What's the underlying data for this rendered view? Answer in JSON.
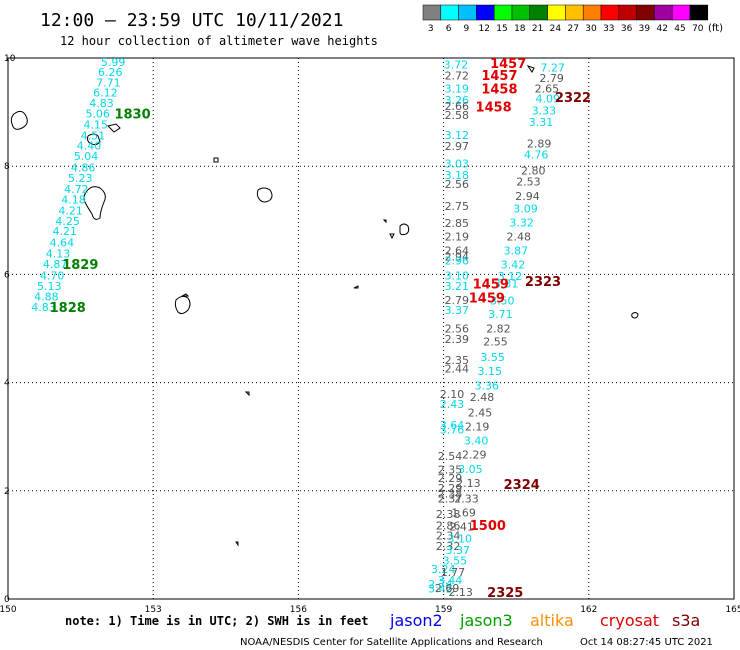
{
  "header": {
    "title": "12:00 – 23:59 UTC 10/11/2021",
    "subtitle": "12 hour collection of altimeter wave heights"
  },
  "colorbar": {
    "ticks": [
      "3",
      "6",
      "9",
      "12",
      "15",
      "18",
      "21",
      "24",
      "27",
      "30",
      "33",
      "36",
      "39",
      "42",
      "45",
      "70"
    ],
    "unit": "(ft)",
    "colors": [
      "#808080",
      "#00ffff",
      "#00c0ff",
      "#0000ff",
      "#00ff00",
      "#00c000",
      "#008000",
      "#ffff00",
      "#ffc000",
      "#ff8000",
      "#ff0000",
      "#c00000",
      "#800000",
      "#a000a0",
      "#ff00ff",
      "#000000"
    ]
  },
  "footer": {
    "note": "note:  1) Time is in UTC;  2) SWH is in feet",
    "credit": "NOAA/NESDIS Center for Satellite Applications and Research",
    "timestamp": "Oct 14 08:27:45 UTC 2021",
    "missions": [
      {
        "label": "jason2",
        "color": "#0000ff"
      },
      {
        "label": "jason3",
        "color": "#00a000"
      },
      {
        "label": "altika",
        "color": "#ff9000"
      },
      {
        "label": "cryosat",
        "color": "#e00000"
      },
      {
        "label": "s3a",
        "color": "#800000"
      }
    ]
  },
  "chart_data": {
    "type": "scatter",
    "xlim": [
      150,
      165
    ],
    "ylim": [
      0,
      10
    ],
    "x_ticks": [
      "150",
      "153",
      "156",
      "159",
      "162",
      "165"
    ],
    "y_ticks": [
      "0",
      "2",
      "4",
      "6",
      "8",
      "10"
    ],
    "x_tick_values": [
      150,
      153,
      156,
      159,
      162,
      165
    ],
    "y_tick_values": [
      0,
      2,
      4,
      6,
      8,
      10
    ],
    "grid": true,
    "colors": {
      "gray": "#555555",
      "cyan": "#00d8e8",
      "green": "#008000",
      "red": "#e00000",
      "maroon": "#800000"
    },
    "series": [
      {
        "name": "jason3",
        "points": [
          {
            "lon": 151.92,
            "lat": 9.93,
            "label": "5.99",
            "c": "cyan"
          },
          {
            "lon": 151.86,
            "lat": 9.74,
            "label": "6.26",
            "c": "cyan"
          },
          {
            "lon": 151.82,
            "lat": 9.55,
            "label": "7.71",
            "c": "cyan"
          },
          {
            "lon": 151.76,
            "lat": 9.36,
            "label": "6.12",
            "c": "cyan"
          },
          {
            "lon": 151.68,
            "lat": 9.17,
            "label": "4.83",
            "c": "cyan"
          },
          {
            "lon": 151.6,
            "lat": 8.97,
            "label": "5.06",
            "c": "cyan"
          },
          {
            "lon": 151.56,
            "lat": 8.77,
            "label": "4.15",
            "c": "cyan"
          },
          {
            "lon": 151.5,
            "lat": 8.57,
            "label": "4.51",
            "c": "cyan"
          },
          {
            "lon": 151.42,
            "lat": 8.38,
            "label": "4.40",
            "c": "cyan"
          },
          {
            "lon": 151.36,
            "lat": 8.19,
            "label": "5.04",
            "c": "cyan"
          },
          {
            "lon": 151.3,
            "lat": 7.98,
            "label": "4.86",
            "c": "cyan"
          },
          {
            "lon": 151.24,
            "lat": 7.78,
            "label": "5.23",
            "c": "cyan"
          },
          {
            "lon": 151.16,
            "lat": 7.58,
            "label": "4.72",
            "c": "cyan"
          },
          {
            "lon": 151.1,
            "lat": 7.38,
            "label": "4.18",
            "c": "cyan"
          },
          {
            "lon": 151.04,
            "lat": 7.18,
            "label": "4.21",
            "c": "cyan"
          },
          {
            "lon": 150.98,
            "lat": 6.99,
            "label": "4.25",
            "c": "cyan"
          },
          {
            "lon": 150.92,
            "lat": 6.8,
            "label": "4.21",
            "c": "cyan"
          },
          {
            "lon": 150.86,
            "lat": 6.59,
            "label": "4.64",
            "c": "cyan"
          },
          {
            "lon": 150.78,
            "lat": 6.39,
            "label": "4.13",
            "c": "cyan"
          },
          {
            "lon": 150.72,
            "lat": 6.19,
            "label": "4.87",
            "c": "cyan"
          },
          {
            "lon": 150.66,
            "lat": 5.98,
            "label": "4.70",
            "c": "cyan"
          },
          {
            "lon": 150.6,
            "lat": 5.79,
            "label": "5.13",
            "c": "cyan"
          },
          {
            "lon": 150.54,
            "lat": 5.59,
            "label": "4.88",
            "c": "cyan"
          },
          {
            "lon": 150.48,
            "lat": 5.4,
            "label": "4.83",
            "c": "cyan"
          }
        ],
        "times": [
          {
            "lon": 152.2,
            "lat": 8.97,
            "label": "1830",
            "c": "green"
          },
          {
            "lon": 151.12,
            "lat": 6.19,
            "label": "1829",
            "c": "green"
          },
          {
            "lon": 150.86,
            "lat": 5.4,
            "label": "1828",
            "c": "green"
          }
        ]
      },
      {
        "name": "s3a",
        "points": [
          {
            "lon": 159.0,
            "lat": 9.88,
            "label": "3.72",
            "c": "cyan"
          },
          {
            "lon": 159.02,
            "lat": 9.68,
            "label": "2.72",
            "c": "gray"
          },
          {
            "lon": 159.02,
            "lat": 9.44,
            "label": "3.19",
            "c": "cyan"
          },
          {
            "lon": 159.02,
            "lat": 9.22,
            "label": "3.26",
            "c": "cyan"
          },
          {
            "lon": 159.02,
            "lat": 9.11,
            "label": "2.66",
            "c": "gray"
          },
          {
            "lon": 159.02,
            "lat": 8.95,
            "label": "2.58",
            "c": "gray"
          },
          {
            "lon": 159.02,
            "lat": 8.58,
            "label": "3.12",
            "c": "cyan"
          },
          {
            "lon": 159.02,
            "lat": 8.37,
            "label": "2.97",
            "c": "gray"
          },
          {
            "lon": 159.02,
            "lat": 8.05,
            "label": "3.03",
            "c": "cyan"
          },
          {
            "lon": 159.02,
            "lat": 7.84,
            "label": "3.18",
            "c": "cyan"
          },
          {
            "lon": 159.02,
            "lat": 7.67,
            "label": "2.56",
            "c": "gray"
          },
          {
            "lon": 159.02,
            "lat": 7.26,
            "label": "2.75",
            "c": "gray"
          },
          {
            "lon": 159.02,
            "lat": 6.95,
            "label": "2.85",
            "c": "gray"
          },
          {
            "lon": 159.02,
            "lat": 6.7,
            "label": "2.19",
            "c": "gray"
          },
          {
            "lon": 159.02,
            "lat": 6.44,
            "label": "2.64",
            "c": "gray"
          },
          {
            "lon": 159.02,
            "lat": 6.33,
            "label": "2.94",
            "c": "gray"
          },
          {
            "lon": 159.02,
            "lat": 6.26,
            "label": "2.96",
            "c": "cyan"
          },
          {
            "lon": 159.02,
            "lat": 5.98,
            "label": "3.10",
            "c": "cyan"
          },
          {
            "lon": 159.02,
            "lat": 5.79,
            "label": "3.21",
            "c": "cyan"
          },
          {
            "lon": 159.02,
            "lat": 5.53,
            "label": "2.79",
            "c": "gray"
          },
          {
            "lon": 159.02,
            "lat": 5.34,
            "label": "3.37",
            "c": "cyan"
          },
          {
            "lon": 159.02,
            "lat": 5.0,
            "label": "2.56",
            "c": "gray"
          },
          {
            "lon": 159.02,
            "lat": 4.81,
            "label": "2.39",
            "c": "gray"
          },
          {
            "lon": 159.02,
            "lat": 4.42,
            "label": "2.35",
            "c": "gray"
          },
          {
            "lon": 159.02,
            "lat": 4.26,
            "label": "2.44",
            "c": "gray"
          },
          {
            "lon": 158.92,
            "lat": 3.79,
            "label": "2.10",
            "c": "gray"
          },
          {
            "lon": 158.92,
            "lat": 3.6,
            "label": "2.43",
            "c": "cyan"
          },
          {
            "lon": 158.92,
            "lat": 3.22,
            "label": "3.64",
            "c": "cyan"
          },
          {
            "lon": 158.92,
            "lat": 3.13,
            "label": "3.76",
            "c": "cyan"
          },
          {
            "lon": 158.88,
            "lat": 2.64,
            "label": "2.54",
            "c": "gray"
          },
          {
            "lon": 158.88,
            "lat": 2.39,
            "label": "2.35",
            "c": "gray"
          },
          {
            "lon": 158.88,
            "lat": 2.24,
            "label": "2.29",
            "c": "gray"
          },
          {
            "lon": 158.88,
            "lat": 2.05,
            "label": "2.29",
            "c": "gray"
          },
          {
            "lon": 158.88,
            "lat": 1.95,
            "label": "2.38",
            "c": "gray"
          },
          {
            "lon": 158.88,
            "lat": 1.86,
            "label": "2.37",
            "c": "gray"
          },
          {
            "lon": 158.84,
            "lat": 1.57,
            "label": "2.38",
            "c": "gray"
          },
          {
            "lon": 158.84,
            "lat": 1.36,
            "label": "2.86",
            "c": "gray"
          },
          {
            "lon": 158.84,
            "lat": 1.17,
            "label": "2.34",
            "c": "gray"
          },
          {
            "lon": 158.84,
            "lat": 0.98,
            "label": "2.32",
            "c": "gray"
          },
          {
            "lon": 158.74,
            "lat": 0.55,
            "label": "3.24",
            "c": "cyan"
          },
          {
            "lon": 158.68,
            "lat": 0.28,
            "label": "2.74",
            "c": "cyan"
          },
          {
            "lon": 158.68,
            "lat": 0.19,
            "label": "3.42",
            "c": "cyan"
          },
          {
            "lon": 159.1,
            "lat": 0.13,
            "label": "2.13",
            "c": "gray"
          }
        ],
        "times": [
          {
            "lon": 161.3,
            "lat": 9.28,
            "label": "2322",
            "c": "maroon"
          },
          {
            "lon": 160.68,
            "lat": 5.88,
            "label": "2323",
            "c": "maroon"
          },
          {
            "lon": 160.24,
            "lat": 2.13,
            "label": "2324",
            "c": "maroon"
          },
          {
            "lon": 159.9,
            "lat": 0.13,
            "label": "2325",
            "c": "maroon"
          }
        ]
      },
      {
        "name": "cryosat",
        "points": [
          {
            "lon": 161.0,
            "lat": 9.82,
            "label": "7.27",
            "c": "cyan"
          },
          {
            "lon": 160.98,
            "lat": 9.63,
            "label": "2.79",
            "c": "gray"
          },
          {
            "lon": 160.88,
            "lat": 9.44,
            "label": "2.65",
            "c": "gray"
          },
          {
            "lon": 160.9,
            "lat": 9.25,
            "label": "4.09",
            "c": "cyan"
          },
          {
            "lon": 160.82,
            "lat": 9.03,
            "label": "3.33",
            "c": "cyan"
          },
          {
            "lon": 160.76,
            "lat": 8.82,
            "label": "3.31",
            "c": "cyan"
          },
          {
            "lon": 160.72,
            "lat": 8.42,
            "label": "2.89",
            "c": "gray"
          },
          {
            "lon": 160.66,
            "lat": 8.22,
            "label": "4.76",
            "c": "cyan"
          },
          {
            "lon": 160.6,
            "lat": 7.92,
            "label": "2.80",
            "c": "gray"
          },
          {
            "lon": 160.5,
            "lat": 7.72,
            "label": "2.53",
            "c": "gray"
          },
          {
            "lon": 160.48,
            "lat": 7.45,
            "label": "2.94",
            "c": "gray"
          },
          {
            "lon": 160.44,
            "lat": 7.22,
            "label": "3.09",
            "c": "cyan"
          },
          {
            "lon": 160.36,
            "lat": 6.96,
            "label": "3.32",
            "c": "cyan"
          },
          {
            "lon": 160.3,
            "lat": 6.7,
            "label": "2.48",
            "c": "gray"
          },
          {
            "lon": 160.24,
            "lat": 6.44,
            "label": "3.87",
            "c": "cyan"
          },
          {
            "lon": 160.18,
            "lat": 6.18,
            "label": "3.42",
            "c": "cyan"
          },
          {
            "lon": 160.12,
            "lat": 5.97,
            "label": "3.12",
            "c": "cyan"
          },
          {
            "lon": 160.04,
            "lat": 5.83,
            "label": "3.31",
            "c": "cyan"
          },
          {
            "lon": 159.96,
            "lat": 5.52,
            "label": "3.50",
            "c": "cyan"
          },
          {
            "lon": 159.92,
            "lat": 5.27,
            "label": "3.71",
            "c": "cyan"
          },
          {
            "lon": 159.88,
            "lat": 5.0,
            "label": "2.82",
            "c": "gray"
          },
          {
            "lon": 159.82,
            "lat": 4.76,
            "label": "2.55",
            "c": "gray"
          },
          {
            "lon": 159.76,
            "lat": 4.47,
            "label": "3.55",
            "c": "cyan"
          },
          {
            "lon": 159.7,
            "lat": 4.21,
            "label": "3.15",
            "c": "cyan"
          },
          {
            "lon": 159.64,
            "lat": 3.95,
            "label": "3.36",
            "c": "cyan"
          },
          {
            "lon": 159.54,
            "lat": 3.73,
            "label": "2.48",
            "c": "gray"
          },
          {
            "lon": 159.5,
            "lat": 3.45,
            "label": "2.45",
            "c": "gray"
          },
          {
            "lon": 159.44,
            "lat": 3.19,
            "label": "2.19",
            "c": "gray"
          },
          {
            "lon": 159.42,
            "lat": 2.93,
            "label": "3.40",
            "c": "cyan"
          },
          {
            "lon": 159.38,
            "lat": 2.67,
            "label": "2.29",
            "c": "gray"
          },
          {
            "lon": 159.3,
            "lat": 2.4,
            "label": "3.05",
            "c": "cyan"
          },
          {
            "lon": 159.26,
            "lat": 2.14,
            "label": "2.13",
            "c": "gray"
          },
          {
            "lon": 159.22,
            "lat": 1.86,
            "label": "2.33",
            "c": "gray"
          },
          {
            "lon": 159.16,
            "lat": 1.6,
            "label": "1.69",
            "c": "gray"
          },
          {
            "lon": 159.12,
            "lat": 1.34,
            "label": "2.41",
            "c": "gray"
          },
          {
            "lon": 159.08,
            "lat": 1.12,
            "label": "3.10",
            "c": "cyan"
          },
          {
            "lon": 159.04,
            "lat": 0.91,
            "label": "3.37",
            "c": "cyan"
          },
          {
            "lon": 158.98,
            "lat": 0.71,
            "label": "3.55",
            "c": "cyan"
          },
          {
            "lon": 158.94,
            "lat": 0.5,
            "label": "1.77",
            "c": "gray"
          },
          {
            "lon": 158.88,
            "lat": 0.35,
            "label": "3.44",
            "c": "cyan"
          },
          {
            "lon": 158.82,
            "lat": 0.2,
            "label": "2.69",
            "c": "gray"
          }
        ],
        "times": [
          {
            "lon": 159.96,
            "lat": 9.91,
            "label": "1457",
            "c": "red"
          },
          {
            "lon": 159.78,
            "lat": 9.69,
            "label": "1457",
            "c": "red"
          },
          {
            "lon": 159.78,
            "lat": 9.44,
            "label": "1458",
            "c": "red"
          },
          {
            "lon": 159.66,
            "lat": 9.1,
            "label": "1458",
            "c": "red"
          },
          {
            "lon": 159.6,
            "lat": 5.83,
            "label": "1459",
            "c": "red"
          },
          {
            "lon": 159.52,
            "lat": 5.57,
            "label": "1459",
            "c": "red"
          },
          {
            "lon": 159.54,
            "lat": 1.37,
            "label": "1500",
            "c": "red"
          }
        ]
      }
    ]
  }
}
